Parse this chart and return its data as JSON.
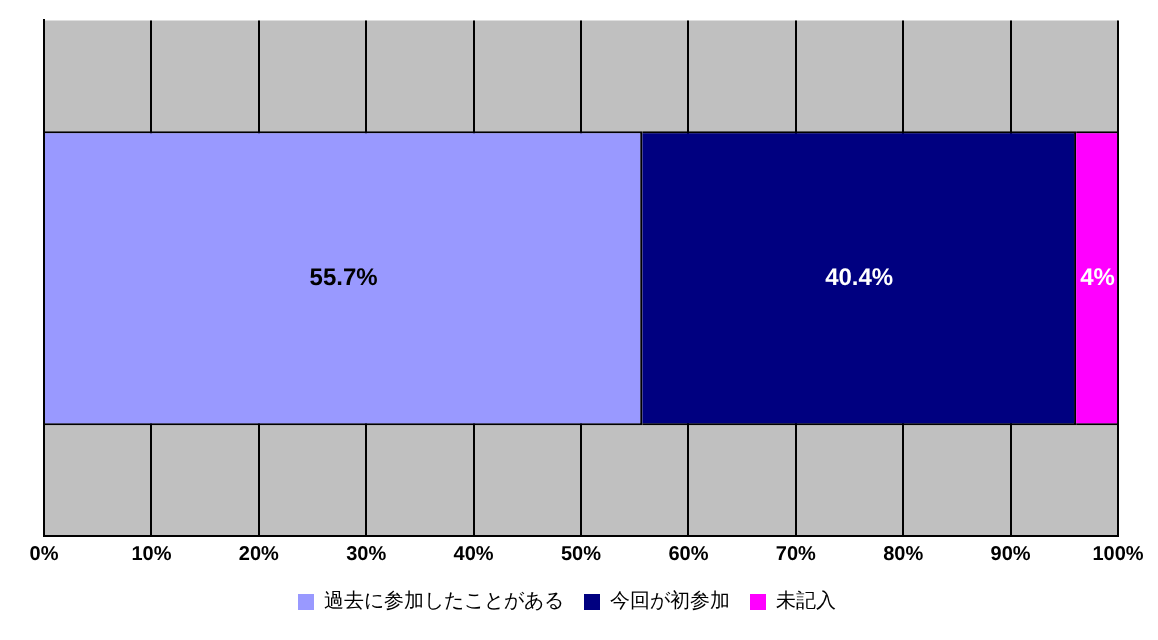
{
  "chart_data": {
    "type": "bar",
    "orientation": "horizontal",
    "stacked": true,
    "categories": [
      null
    ],
    "series": [
      {
        "name": "過去に参加したことがある",
        "color": "#9999ff",
        "values": [
          55.7
        ],
        "value_labels": [
          "55.7%"
        ]
      },
      {
        "name": "今回が初参加",
        "color": "#000080",
        "values": [
          40.4
        ],
        "value_labels": [
          "40.4%"
        ]
      },
      {
        "name": "未記入",
        "color": "#ff00ff",
        "values": [
          4
        ],
        "value_labels": [
          "4%"
        ]
      }
    ],
    "xlim": [
      0,
      100
    ],
    "xticks": [
      {
        "value": 0,
        "label": "0%"
      },
      {
        "value": 10,
        "label": "10%"
      },
      {
        "value": 20,
        "label": "20%"
      },
      {
        "value": 30,
        "label": "30%"
      },
      {
        "value": 40,
        "label": "40%"
      },
      {
        "value": 50,
        "label": "50%"
      },
      {
        "value": 60,
        "label": "60%"
      },
      {
        "value": 70,
        "label": "70%"
      },
      {
        "value": 80,
        "label": "80%"
      },
      {
        "value": 90,
        "label": "90%"
      },
      {
        "value": 100,
        "label": "100%"
      }
    ],
    "grid": "x",
    "legend": "bottom"
  }
}
